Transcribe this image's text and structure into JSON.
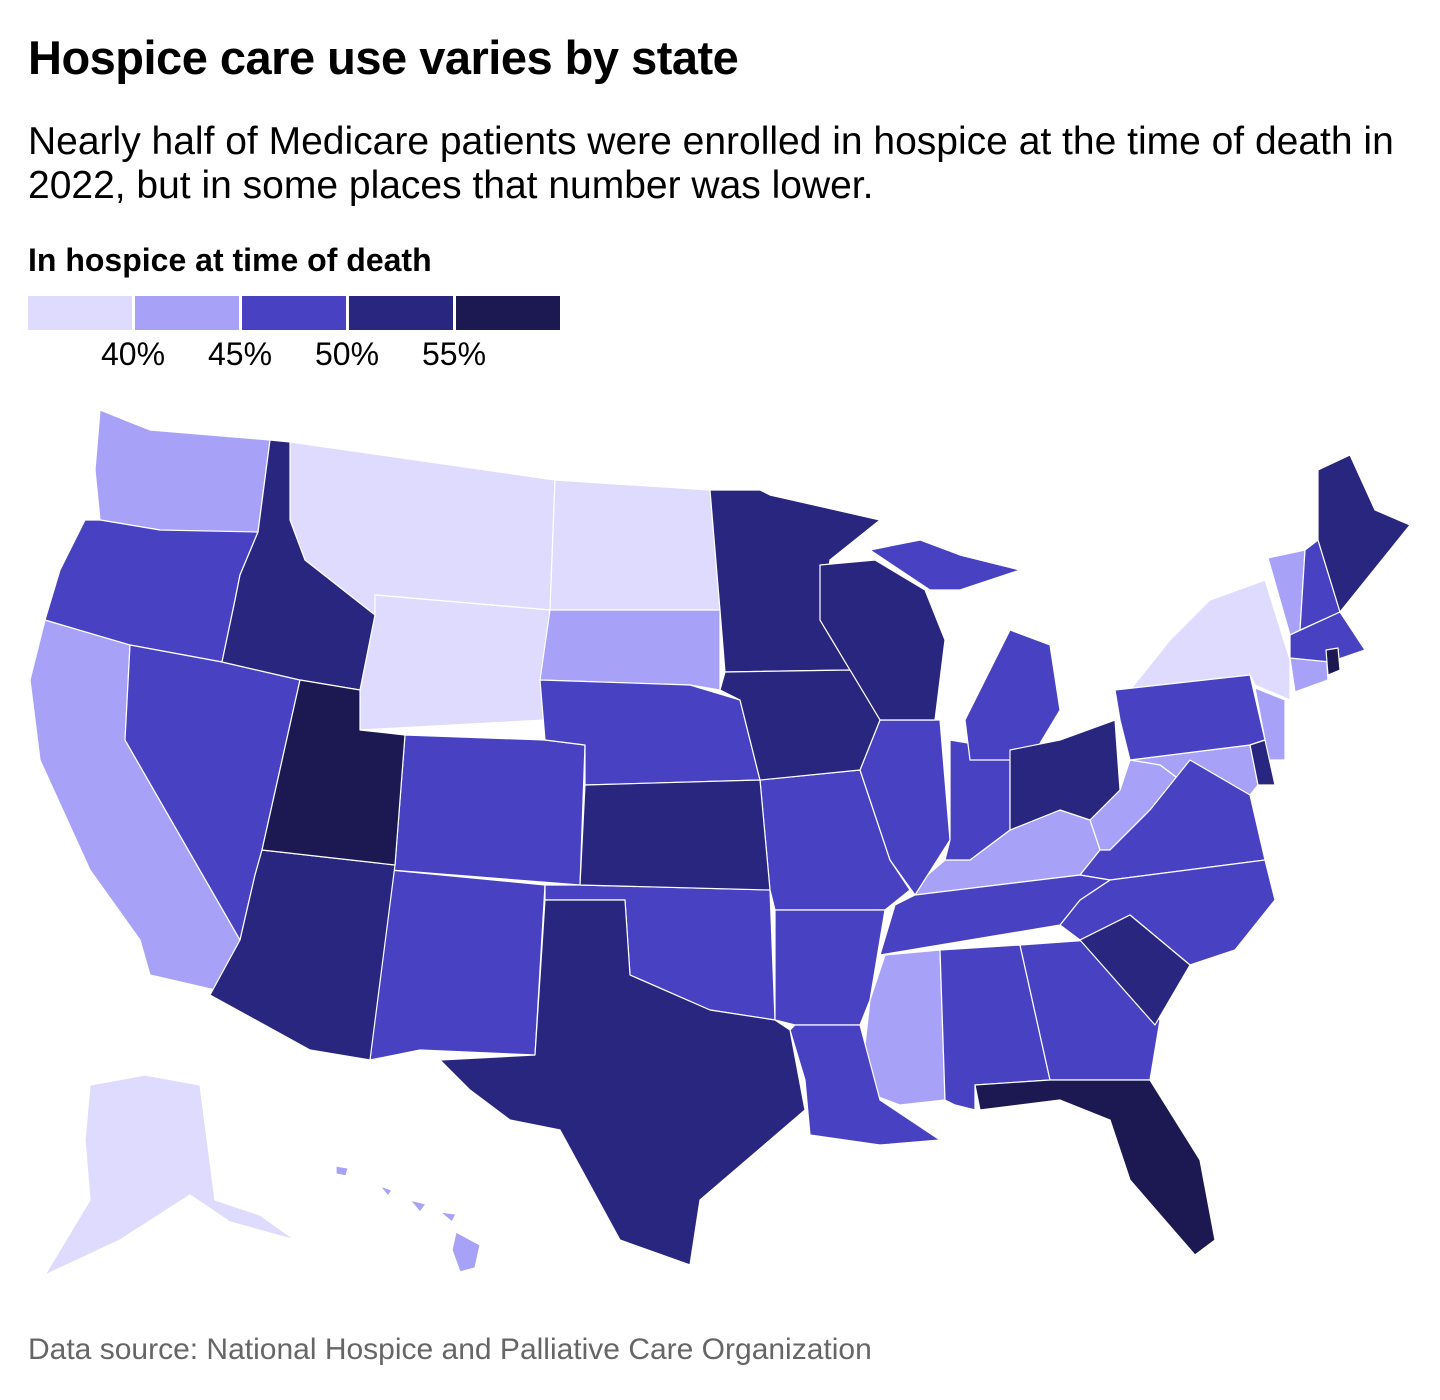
{
  "title": "Hospice care use varies by state",
  "subtitle": "Nearly half of Medicare patients were enrolled in hospice at the time of death in 2022, but in some places that number was lower.",
  "legend": {
    "title": "In hospice at time of death",
    "colors": [
      "#dedbfe",
      "#a7a2f8",
      "#4842c3",
      "#29267f",
      "#1b1852"
    ],
    "breaks": [
      "40%",
      "45%",
      "50%",
      "55%"
    ]
  },
  "source": "Data source: National Hospice and Palliative Care Organization",
  "chart_data": {
    "type": "choropleth",
    "bins": [
      "<40%",
      "40–45%",
      "45–50%",
      "50–55%",
      "≥55%"
    ],
    "states": {
      "MT": 0,
      "ND": 0,
      "WY": 0,
      "NY": 0,
      "AK": 0,
      "WA": 1,
      "CA": 1,
      "SD": 1,
      "VT": 1,
      "CT": 1,
      "NJ": 1,
      "MD": 1,
      "WV": 1,
      "KY": 1,
      "MS": 1,
      "HI": 1,
      "OR": 2,
      "NV": 2,
      "CO": 2,
      "NE": 2,
      "NM": 2,
      "OK": 2,
      "MO": 2,
      "AR": 2,
      "LA": 2,
      "IL": 2,
      "IN": 2,
      "MI": 2,
      "PA": 2,
      "VA": 2,
      "NC": 2,
      "TN": 2,
      "AL": 2,
      "GA": 2,
      "NH": 2,
      "MA": 2,
      "ID": 3,
      "AZ": 3,
      "TX": 3,
      "KS": 3,
      "MN": 3,
      "WI": 3,
      "IA": 3,
      "OH": 3,
      "ME": 3,
      "SC": 3,
      "DE": 3,
      "UT": 4,
      "FL": 4,
      "RI": 4
    }
  }
}
